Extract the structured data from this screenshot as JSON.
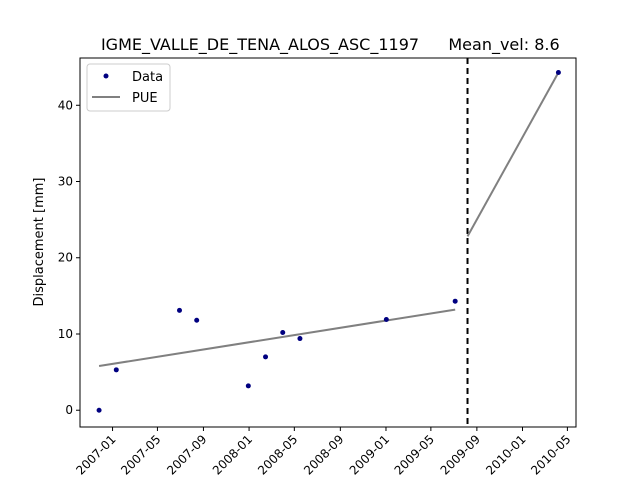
{
  "chart_data": {
    "type": "scatter",
    "title": "IGME_VALLE_DE_TENA_ALOS_ASC_1197",
    "subtitle": "Mean_vel: 8.6",
    "xlabel": "",
    "ylabel": "Displacement [mm]",
    "xlim": [
      "2006-10-06",
      "2010-05-24"
    ],
    "ylim": [
      -2.2,
      46.2
    ],
    "x_ticks": [
      "2007-01",
      "2007-05",
      "2007-09",
      "2008-01",
      "2008-05",
      "2008-09",
      "2009-01",
      "2009-05",
      "2009-09",
      "2010-01",
      "2010-05"
    ],
    "y_ticks": [
      0,
      10,
      20,
      30,
      40
    ],
    "grid": false,
    "legend_position": "top-left",
    "series": [
      {
        "name": "Data",
        "kind": "points",
        "color": "#000080",
        "x": [
          "2006-11-26",
          "2007-01-11",
          "2007-06-29",
          "2007-08-14",
          "2007-12-30",
          "2008-02-14",
          "2008-03-31",
          "2008-05-16",
          "2009-01-02",
          "2009-07-05",
          "2010-04-07"
        ],
        "y": [
          0.0,
          5.3,
          13.1,
          11.8,
          3.2,
          7.0,
          10.2,
          9.4,
          11.9,
          14.3,
          44.3
        ]
      },
      {
        "name": "PUE",
        "kind": "line",
        "color": "#808080",
        "x": [
          "2006-11-26",
          "2009-07-05"
        ],
        "y": [
          5.8,
          13.2
        ]
      },
      {
        "name": "",
        "kind": "line",
        "color": "#808080",
        "x": [
          "2009-08-07",
          "2010-04-07"
        ],
        "y": [
          22.8,
          44.3
        ]
      }
    ],
    "vertical_lines": [
      {
        "x": "2009-08-07",
        "style": "dashed",
        "color": "#000000"
      }
    ]
  }
}
